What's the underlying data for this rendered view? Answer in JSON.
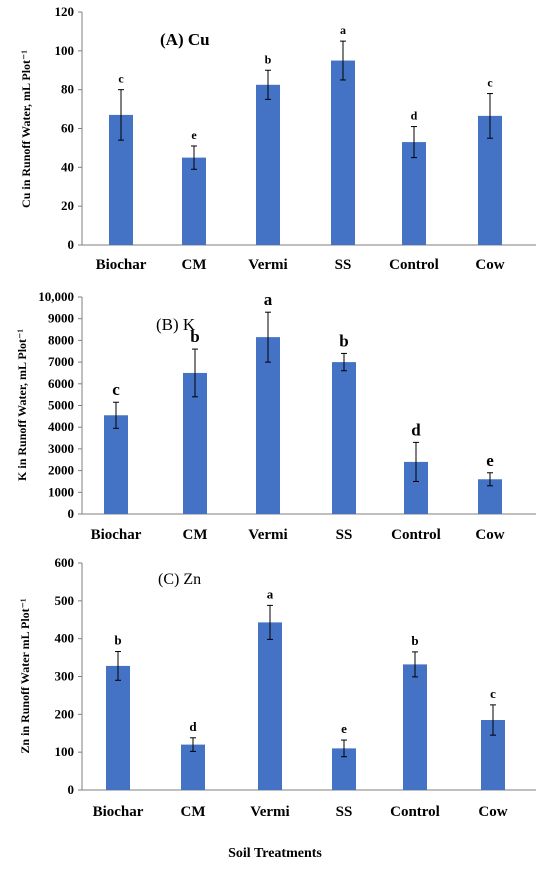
{
  "chart_data": [
    {
      "type": "bar",
      "title": "(A) Cu",
      "ylabel": "Cu in Runoff Water, mL Plot⁻¹",
      "xlabel": "",
      "categories": [
        "Biochar",
        "CM",
        "Vermi",
        "SS",
        "Control",
        "Cow"
      ],
      "values": [
        67,
        45,
        82.5,
        95,
        53,
        66.5
      ],
      "errors": [
        13,
        6,
        7.5,
        10,
        8,
        11.5
      ],
      "significance": [
        "c",
        "e",
        "b",
        "a",
        "d",
        "c"
      ],
      "ylim": [
        0,
        120
      ],
      "yticks": [
        0,
        20,
        40,
        60,
        80,
        100,
        120
      ],
      "ytick_labels": [
        "0",
        "20",
        "40",
        "60",
        "80",
        "100",
        "120"
      ],
      "grid": false,
      "bar_color": "#4472c4"
    },
    {
      "type": "bar",
      "title": "(B) K",
      "ylabel": "K in Runoff Water, mL Plot⁻¹",
      "xlabel": "",
      "categories": [
        "Biochar",
        "CM",
        "Vermi",
        "SS",
        "Control",
        "Cow"
      ],
      "values": [
        4550,
        6500,
        8150,
        7000,
        2400,
        1600
      ],
      "errors": [
        600,
        1100,
        1150,
        400,
        900,
        300
      ],
      "significance": [
        "c",
        "b",
        "a",
        "b",
        "d",
        "e"
      ],
      "ylim": [
        0,
        10000
      ],
      "yticks": [
        0,
        1000,
        2000,
        3000,
        4000,
        5000,
        6000,
        7000,
        8000,
        9000,
        10000
      ],
      "ytick_labels": [
        "0",
        "1000",
        "2000",
        "3000",
        "4000",
        "5000",
        "6000",
        "7000",
        "8000",
        "9000",
        "10,000"
      ],
      "grid": false,
      "bar_color": "#4472c4"
    },
    {
      "type": "bar",
      "title": "(C) Zn",
      "ylabel": "Zn in Runoff Water mL Plot⁻¹",
      "xlabel": "Soil Treatments",
      "categories": [
        "Biochar",
        "CM",
        "Vermi",
        "SS",
        "Control",
        "Cow"
      ],
      "values": [
        328,
        120,
        443,
        110,
        332,
        185
      ],
      "errors": [
        38,
        18,
        45,
        22,
        33,
        40
      ],
      "significance": [
        "b",
        "d",
        "a",
        "e",
        "b",
        "c"
      ],
      "ylim": [
        0,
        600
      ],
      "yticks": [
        0,
        100,
        200,
        300,
        400,
        500,
        600
      ],
      "ytick_labels": [
        "0",
        "100",
        "200",
        "300",
        "400",
        "500",
        "600"
      ],
      "grid": false,
      "bar_color": "#4472c4"
    }
  ]
}
